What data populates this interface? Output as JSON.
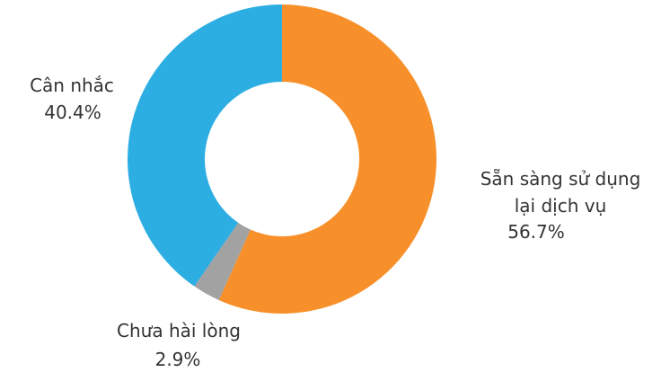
{
  "chart_data": {
    "type": "pie",
    "donut": true,
    "slices": [
      {
        "label": [
          "Sẵn sàng sử dụng",
          "lại dịch vụ"
        ],
        "value": 56.7,
        "value_label": "56.7%",
        "color": "#f7902a"
      },
      {
        "label": [
          "Chưa hài lòng"
        ],
        "value": 2.9,
        "value_label": "2.9%",
        "color": "#a2a2a2"
      },
      {
        "label": [
          "Cân nhắc"
        ],
        "value": 40.4,
        "value_label": "40.4%",
        "color": "#2daee3"
      }
    ]
  }
}
